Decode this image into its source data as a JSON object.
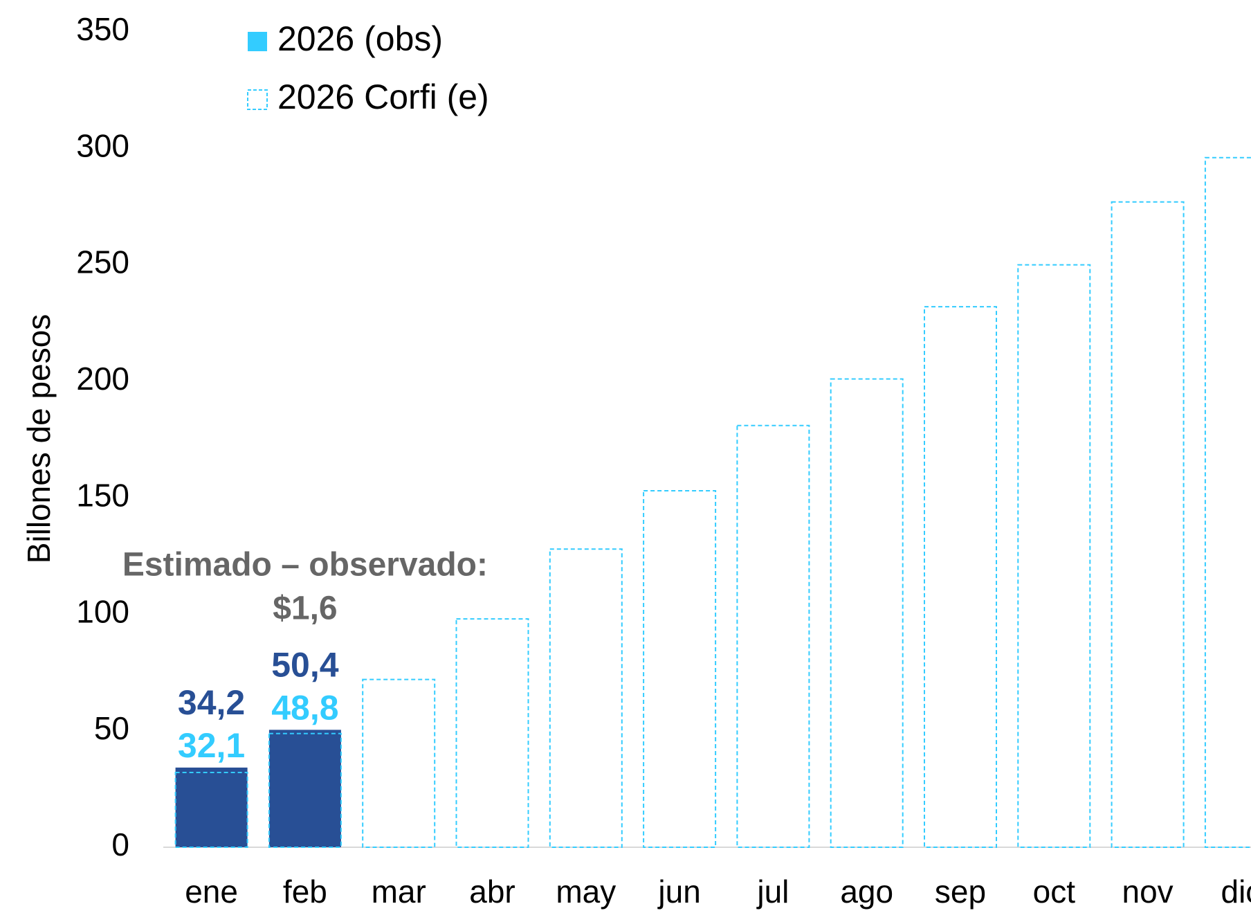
{
  "chart_data": {
    "type": "bar",
    "y_label": "Billones de pesos",
    "categories": [
      "ene",
      "feb",
      "mar",
      "abr",
      "may",
      "jun",
      "jul",
      "ago",
      "sep",
      "oct",
      "nov",
      "dic"
    ],
    "series": [
      {
        "name": "2026 (obs)",
        "color": "#284f95",
        "legend_color": "#33ccff",
        "style": "solid",
        "values": [
          34.2,
          50.4,
          null,
          null,
          null,
          null,
          null,
          null,
          null,
          null,
          null,
          null
        ],
        "value_labels": [
          "34,2",
          "50,4",
          null,
          null,
          null,
          null,
          null,
          null,
          null,
          null,
          null,
          null
        ]
      },
      {
        "name": "2026 Corfi (e)",
        "color": "#33ccff",
        "legend_color": "#33ccff",
        "style": "dashed",
        "values": [
          32.1,
          48.8,
          72,
          98,
          128,
          153,
          181,
          201,
          232,
          250,
          277,
          296
        ],
        "value_labels": [
          "32,1",
          "48,8",
          null,
          null,
          null,
          null,
          null,
          null,
          null,
          null,
          null,
          null
        ]
      }
    ],
    "annotations": [
      "Estimado – observado:",
      "$1,6"
    ],
    "ylim": [
      0,
      350
    ],
    "yticks": [
      0,
      50,
      100,
      150,
      200,
      250,
      300,
      350
    ],
    "grid": false
  }
}
